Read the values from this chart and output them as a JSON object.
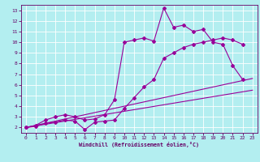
{
  "xlabel": "Windchill (Refroidissement éolien,°C)",
  "bg_color": "#b3eef0",
  "grid_color": "#ffffff",
  "line_color": "#990099",
  "xlim": [
    -0.5,
    23.5
  ],
  "ylim": [
    1.5,
    13.5
  ],
  "xticks": [
    0,
    1,
    2,
    3,
    4,
    5,
    6,
    7,
    8,
    9,
    10,
    11,
    12,
    13,
    14,
    15,
    16,
    17,
    18,
    19,
    20,
    21,
    22,
    23
  ],
  "yticks": [
    2,
    3,
    4,
    5,
    6,
    7,
    8,
    9,
    10,
    11,
    12,
    13
  ],
  "line1_x": [
    0,
    1,
    2,
    3,
    4,
    5,
    6,
    7,
    8,
    9,
    10,
    11,
    12,
    13,
    14,
    15,
    16,
    17,
    18,
    19,
    20,
    21,
    22
  ],
  "line1_y": [
    2.0,
    2.2,
    2.7,
    3.0,
    3.2,
    3.0,
    2.7,
    2.8,
    3.2,
    4.6,
    10.0,
    10.2,
    10.4,
    10.1,
    13.2,
    11.4,
    11.6,
    11.0,
    11.2,
    10.0,
    9.8,
    7.8,
    6.5
  ],
  "line2_x": [
    0,
    1,
    2,
    3,
    4,
    5,
    6,
    7,
    8,
    9,
    10,
    11,
    12,
    13,
    14,
    15,
    16,
    17,
    18,
    19,
    20,
    21,
    22
  ],
  "line2_y": [
    2.0,
    2.1,
    2.4,
    2.5,
    2.7,
    2.6,
    1.8,
    2.5,
    2.6,
    2.7,
    3.8,
    4.8,
    5.8,
    6.5,
    8.5,
    9.0,
    9.5,
    9.8,
    10.0,
    10.2,
    10.4,
    10.2,
    9.8
  ],
  "line3_x": [
    0,
    23
  ],
  "line3_y": [
    2.0,
    6.6
  ],
  "line4_x": [
    0,
    23
  ],
  "line4_y": [
    2.0,
    5.5
  ]
}
